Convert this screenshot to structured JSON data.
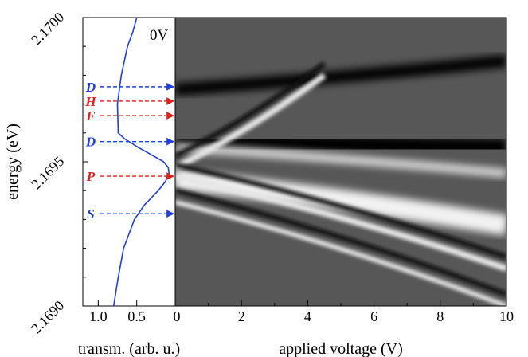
{
  "chart_data": [
    {
      "type": "line",
      "xlabel": "transm. (arb. u.)",
      "ylabel": "energy (eV)",
      "x_ticks": [
        "1.0",
        "0.5",
        "0"
      ],
      "x_tick_values": [
        1.0,
        0.5,
        0.0
      ],
      "y_ticks": [
        "2.1690",
        "2.1695",
        "2.1700"
      ],
      "y_tick_values": [
        2.169,
        2.1695,
        2.17
      ],
      "xlim": [
        1.2,
        0.0
      ],
      "ylim": [
        2.169,
        2.17
      ],
      "annotation": "0V",
      "series_color": "#1f3fd6",
      "transmission": {
        "energy": [
          2.169,
          2.1691,
          2.1692,
          2.1693,
          2.16935,
          2.1694,
          2.16943,
          2.16946,
          2.16948,
          2.1695,
          2.16952,
          2.16955,
          2.16958,
          2.1696,
          2.1697,
          2.1698,
          2.1699,
          2.16995,
          2.17
        ],
        "value": [
          0.8,
          0.74,
          0.67,
          0.53,
          0.4,
          0.22,
          0.13,
          0.08,
          0.09,
          0.15,
          0.28,
          0.48,
          0.66,
          0.74,
          0.75,
          0.7,
          0.62,
          0.55,
          0.5
        ]
      },
      "markers": [
        {
          "label": "D",
          "energy": 2.16976,
          "color": "#1f3fd6"
        },
        {
          "label": "H",
          "energy": 2.16971,
          "color": "#e0201a"
        },
        {
          "label": "F",
          "energy": 2.16966,
          "color": "#e0201a"
        },
        {
          "label": "D",
          "energy": 2.16957,
          "color": "#1f3fd6"
        },
        {
          "label": "P",
          "energy": 2.16945,
          "color": "#e0201a"
        },
        {
          "label": "S",
          "energy": 2.16932,
          "color": "#1f3fd6"
        }
      ]
    },
    {
      "type": "heatmap",
      "xlabel": "applied voltage (V)",
      "x_ticks": [
        "0",
        "2",
        "4",
        "6",
        "8",
        "10"
      ],
      "x_tick_values": [
        0,
        2,
        4,
        6,
        8,
        10
      ],
      "xlim": [
        0,
        10
      ],
      "ylim": [
        2.169,
        2.17
      ],
      "colormap": "grayscale",
      "bright_bands": [
        {
          "energy_start": 2.16944,
          "energy_end": 2.16928,
          "v_end": 10
        },
        {
          "energy_start": 2.16955,
          "energy_end": 2.16946,
          "v_end": 10
        },
        {
          "energy_start": 2.16966,
          "energy_end": 2.16966,
          "v_end": 10
        },
        {
          "energy_start": 2.16948,
          "energy_end": 2.1698,
          "v_end": 4.5
        },
        {
          "energy_start": 2.16945,
          "energy_end": 2.16913,
          "v_end": 10
        },
        {
          "energy_start": 2.16936,
          "energy_end": 2.169,
          "v_end": 10
        }
      ],
      "dark_bands": [
        {
          "energy_start": 2.16957,
          "energy_end": 2.16955,
          "v_end": 10
        },
        {
          "energy_start": 2.16975,
          "energy_end": 2.16985,
          "v_end": 10
        }
      ]
    }
  ]
}
